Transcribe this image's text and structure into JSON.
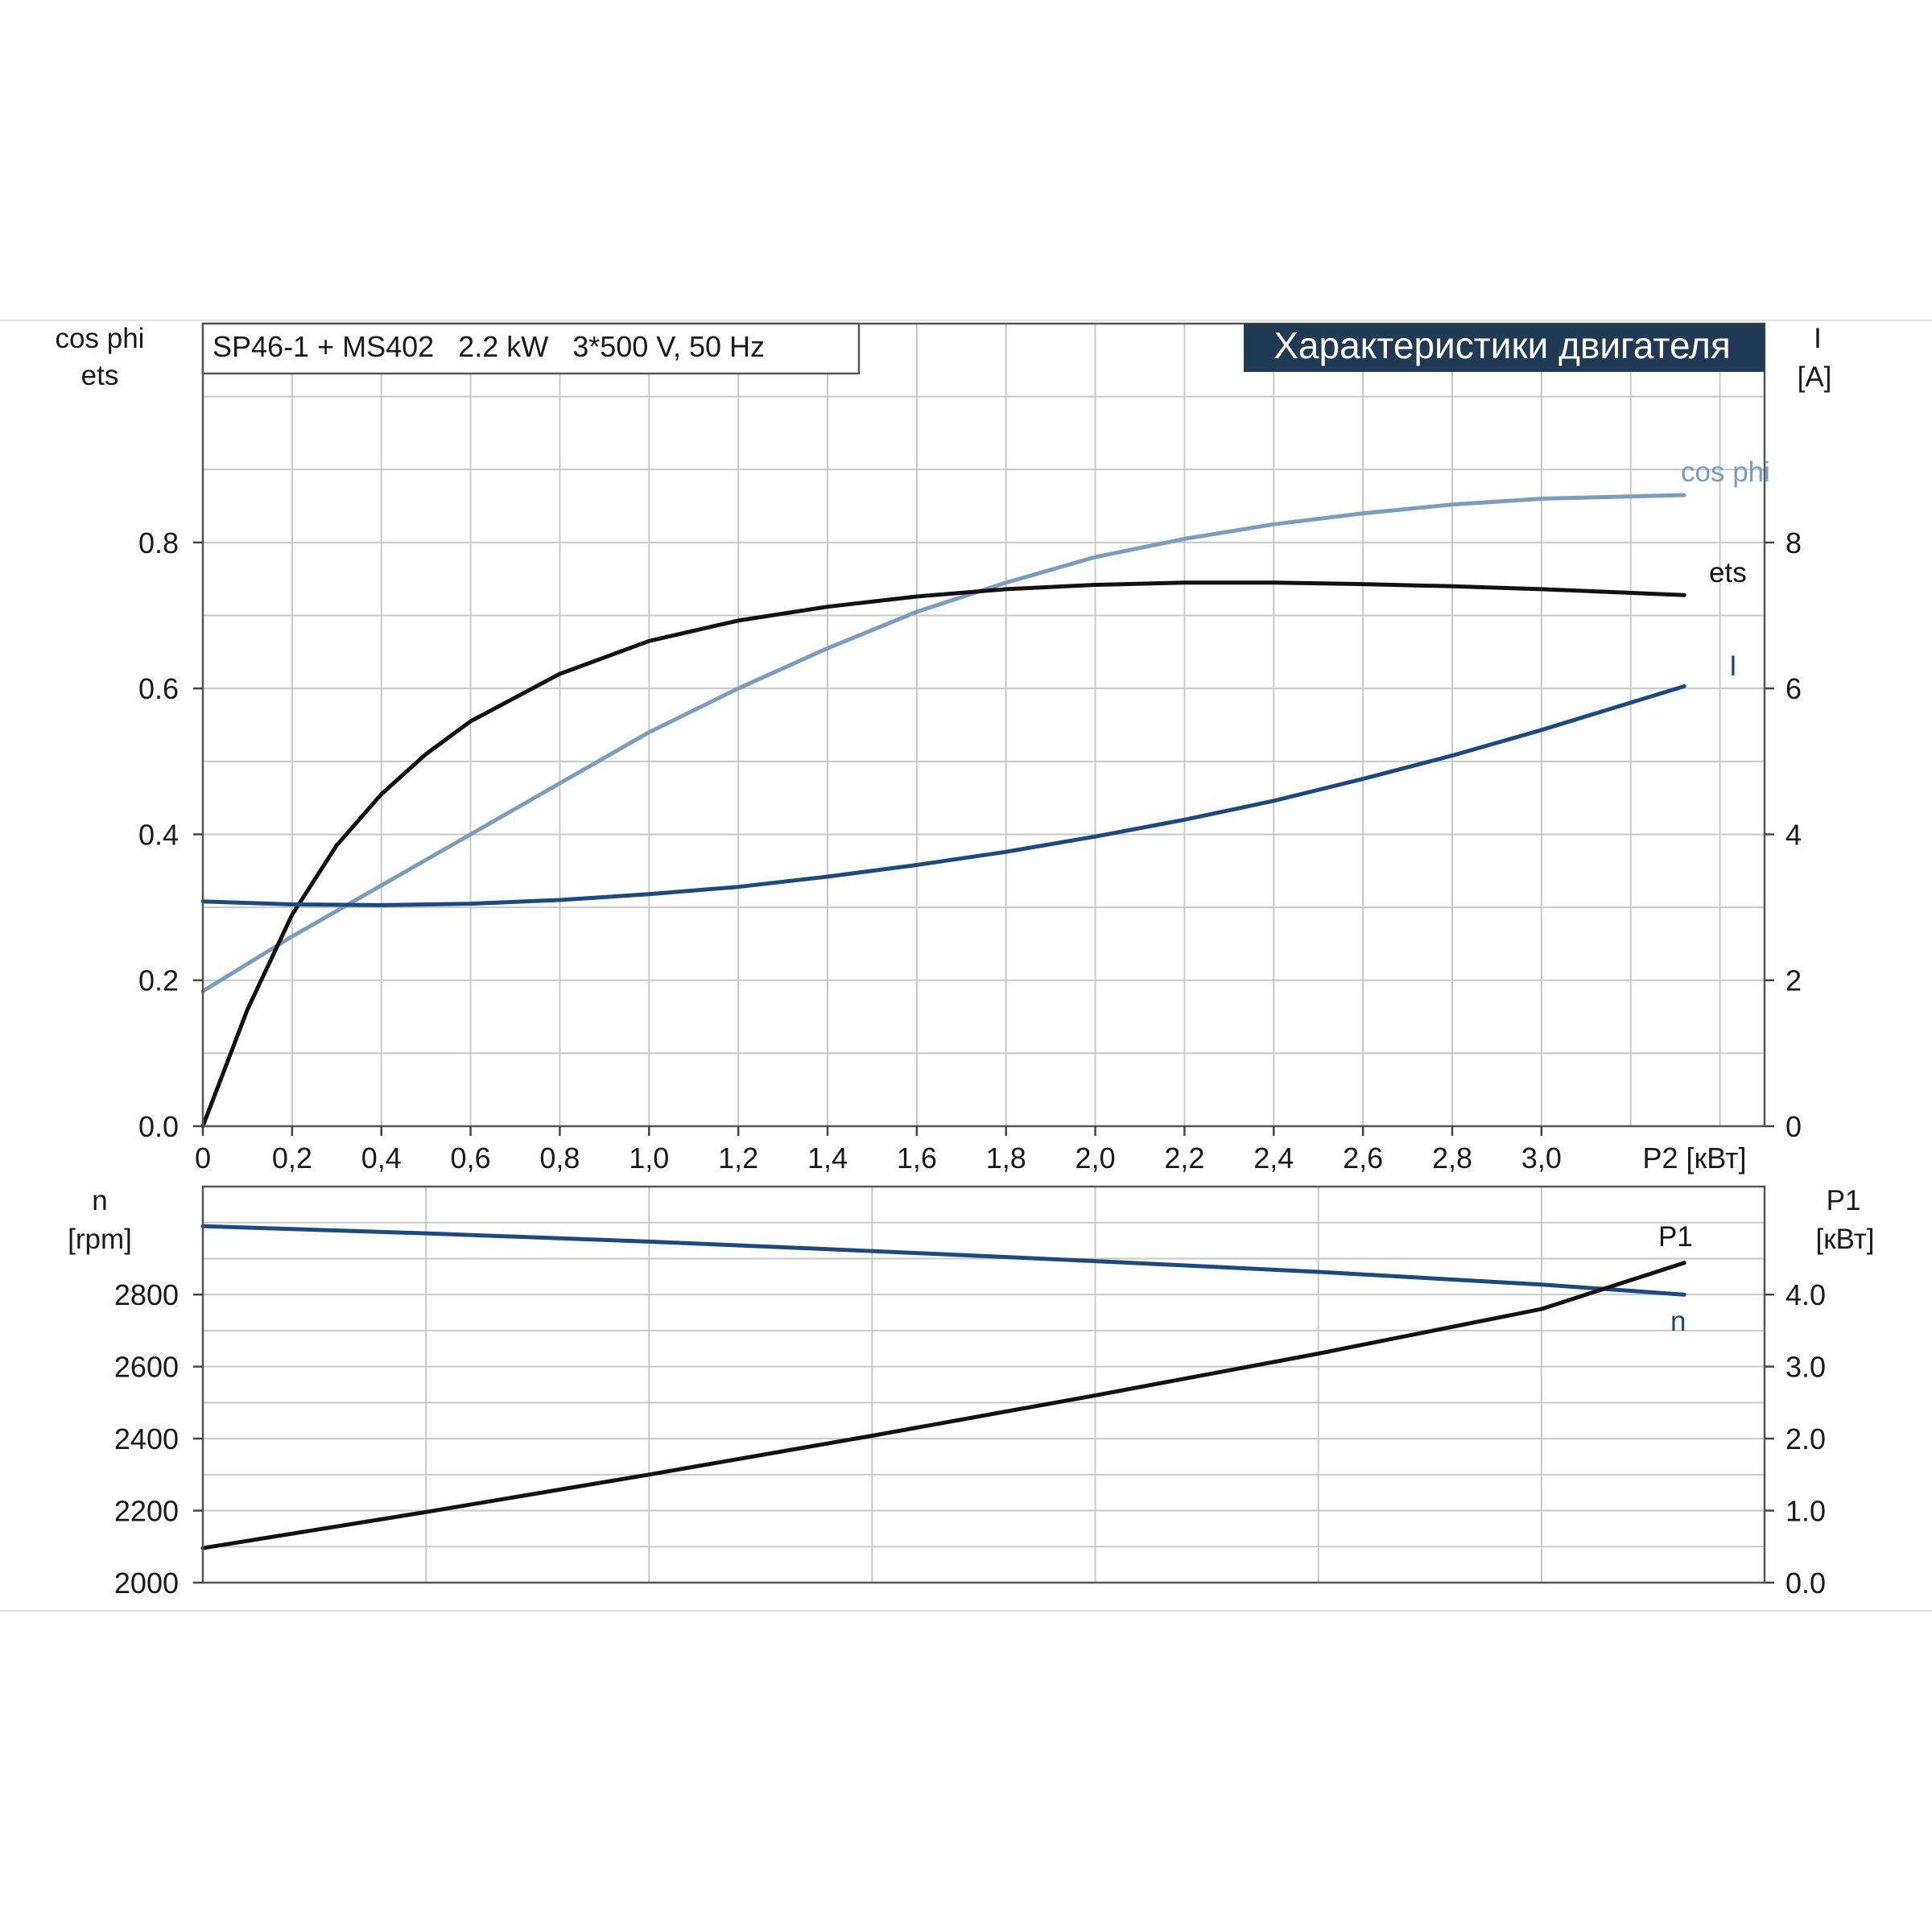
{
  "colors": {
    "ets": "#111111",
    "cosphi": "#7a9cbd",
    "current": "#1b4a80",
    "speed": "#1b4a80",
    "p1": "#111111",
    "banner_bg": "#1f3a52",
    "banner_fg": "#ffffff"
  },
  "header": {
    "product": "SP46-1 + MS402   2.2 kW   3*500 V, 50 Hz",
    "section_title": "Характеристики двигателя"
  },
  "chart_data": [
    {
      "type": "line",
      "x_label": "P2 [кВт]",
      "x_range": [
        0,
        3.5
      ],
      "x_ticks": [
        "0",
        "0,2",
        "0,4",
        "0,6",
        "0,8",
        "1,0",
        "1,2",
        "1,4",
        "1,6",
        "1,8",
        "2,0",
        "2,2",
        "2,4",
        "2,6",
        "2,8",
        "3,0"
      ],
      "y_left_label_1": "cos phi",
      "y_left_label_2": "ets",
      "y_left_range": [
        0,
        1.1
      ],
      "y_left_ticks": [
        "0.0",
        "0.2",
        "0.4",
        "0.6",
        "0.8"
      ],
      "y_right_label_1": "I",
      "y_right_label_2": "[A]",
      "y_right_range": [
        0,
        11
      ],
      "y_right_ticks": [
        "0",
        "2",
        "4",
        "6",
        "8"
      ],
      "grid": true,
      "series": [
        {
          "name": "cos phi",
          "axis": "left",
          "x": [
            0,
            0.2,
            0.4,
            0.6,
            0.8,
            1.0,
            1.2,
            1.4,
            1.6,
            1.8,
            2.0,
            2.2,
            2.4,
            2.6,
            2.8,
            3.0,
            3.32
          ],
          "y": [
            0.185,
            0.26,
            0.33,
            0.4,
            0.47,
            0.54,
            0.6,
            0.655,
            0.705,
            0.745,
            0.78,
            0.805,
            0.825,
            0.84,
            0.852,
            0.86,
            0.865
          ]
        },
        {
          "name": "ets",
          "axis": "left",
          "x": [
            0,
            0.1,
            0.2,
            0.3,
            0.4,
            0.5,
            0.6,
            0.8,
            1.0,
            1.2,
            1.4,
            1.6,
            1.8,
            2.0,
            2.2,
            2.4,
            2.6,
            2.8,
            3.0,
            3.32
          ],
          "y": [
            0.0,
            0.16,
            0.29,
            0.385,
            0.455,
            0.51,
            0.555,
            0.62,
            0.665,
            0.693,
            0.712,
            0.726,
            0.736,
            0.742,
            0.745,
            0.745,
            0.743,
            0.74,
            0.736,
            0.728
          ]
        },
        {
          "name": "I",
          "axis": "right",
          "x": [
            0,
            0.2,
            0.4,
            0.6,
            0.8,
            1.0,
            1.2,
            1.4,
            1.6,
            1.8,
            2.0,
            2.2,
            2.4,
            2.6,
            2.8,
            3.0,
            3.32
          ],
          "y": [
            3.08,
            3.04,
            3.03,
            3.05,
            3.1,
            3.18,
            3.28,
            3.42,
            3.58,
            3.76,
            3.97,
            4.2,
            4.46,
            4.76,
            5.08,
            5.43,
            6.03
          ]
        }
      ]
    },
    {
      "type": "line",
      "x_range": [
        0,
        3.5
      ],
      "y_left_label_1": "n",
      "y_left_label_2": "[rpm]",
      "y_left_range": [
        2000,
        3100
      ],
      "y_left_ticks": [
        "2000",
        "2200",
        "2400",
        "2600",
        "2800"
      ],
      "y_right_label_1": "P1",
      "y_right_label_2": "[кВт]",
      "y_right_range": [
        0.0,
        5.5
      ],
      "y_right_ticks": [
        "0.0",
        "1.0",
        "2.0",
        "3.0",
        "4.0"
      ],
      "grid": true,
      "series": [
        {
          "name": "n",
          "axis": "left",
          "x": [
            0,
            0.5,
            1.0,
            1.5,
            2.0,
            2.5,
            3.0,
            3.32
          ],
          "y": [
            2990,
            2970,
            2947,
            2921,
            2893,
            2863,
            2828,
            2800
          ]
        },
        {
          "name": "P1",
          "axis": "right",
          "x": [
            0,
            0.5,
            1.0,
            1.5,
            2.0,
            2.5,
            3.0,
            3.32
          ],
          "y": [
            0.48,
            0.98,
            1.5,
            2.04,
            2.6,
            3.18,
            3.8,
            4.44
          ]
        }
      ]
    }
  ]
}
